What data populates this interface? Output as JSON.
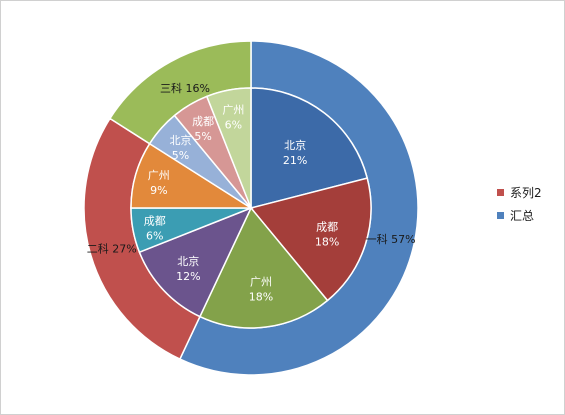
{
  "chart_data": {
    "type": "pie",
    "title": "",
    "rings": [
      {
        "name": "汇总",
        "ring": "outer",
        "slices": [
          {
            "label": "一科",
            "value": 57,
            "pct_label": "57%",
            "color": "#4f81bd"
          },
          {
            "label": "二科",
            "value": 27,
            "pct_label": "27%",
            "color": "#c0504d"
          },
          {
            "label": "三科",
            "value": 16,
            "pct_label": "16%",
            "color": "#9bbb59"
          }
        ]
      },
      {
        "name": "系列2",
        "ring": "inner",
        "slices": [
          {
            "label": "北京",
            "value": 21,
            "pct_label": "21%",
            "color": "#3c6aa8"
          },
          {
            "label": "成都",
            "value": 18,
            "pct_label": "18%",
            "color": "#a43e3a"
          },
          {
            "label": "广州",
            "value": 18,
            "pct_label": "18%",
            "color": "#83a24a"
          },
          {
            "label": "北京",
            "value": 12,
            "pct_label": "12%",
            "color": "#6b548d"
          },
          {
            "label": "成都",
            "value": 6,
            "pct_label": "6%",
            "color": "#3b9db3"
          },
          {
            "label": "广州",
            "value": 9,
            "pct_label": "9%",
            "color": "#e2893b"
          },
          {
            "label": "北京",
            "value": 5,
            "pct_label": "5%",
            "color": "#97b1d8"
          },
          {
            "label": "成都",
            "value": 5,
            "pct_label": "5%",
            "color": "#d69795"
          },
          {
            "label": "广州",
            "value": 6,
            "pct_label": "6%",
            "color": "#c2d69b"
          }
        ]
      }
    ],
    "legend": {
      "placement": "right",
      "entries": [
        {
          "name": "系列2",
          "color": "#c0504d"
        },
        {
          "name": "汇总",
          "color": "#4f81bd"
        }
      ]
    }
  }
}
